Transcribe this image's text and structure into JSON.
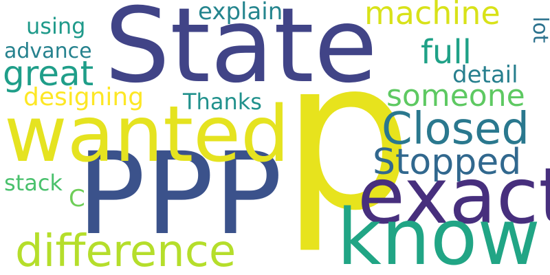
{
  "word_cloud": {
    "words": {
      "state": {
        "text": "State",
        "color": "#414487"
      },
      "p": {
        "text": "p",
        "color": "#e7e31d"
      },
      "ppp": {
        "text": "PPP",
        "color": "#3b528b"
      },
      "wanted": {
        "text": "wanted",
        "color": "#e5e320"
      },
      "exact": {
        "text": "exact",
        "color": "#472f7d"
      },
      "know": {
        "text": "know",
        "color": "#21a585"
      },
      "closed": {
        "text": "Closed",
        "color": "#2a788e"
      },
      "stopped": {
        "text": "Stopped",
        "color": "#31688e"
      },
      "difference": {
        "text": "difference",
        "color": "#b5de2b"
      },
      "machine": {
        "text": "machine",
        "color": "#d8e219"
      },
      "full": {
        "text": "full",
        "color": "#1fa187"
      },
      "someone": {
        "text": "someone",
        "color": "#5ec962"
      },
      "great": {
        "text": "great",
        "color": "#1f9e89"
      },
      "explain": {
        "text": "explain",
        "color": "#25858e"
      },
      "using": {
        "text": "using",
        "color": "#1f9a8a"
      },
      "advance": {
        "text": "advance",
        "color": "#26828e"
      },
      "designing": {
        "text": "designing",
        "color": "#fde725"
      },
      "thanks": {
        "text": "Thanks",
        "color": "#21918c"
      },
      "detail": {
        "text": "detail",
        "color": "#277f8e"
      },
      "stack": {
        "text": "stack",
        "color": "#4ac16d"
      },
      "c": {
        "text": "C",
        "color": "#6ece58"
      },
      "lot": {
        "text": "lot",
        "color": "#2c728e"
      }
    }
  }
}
